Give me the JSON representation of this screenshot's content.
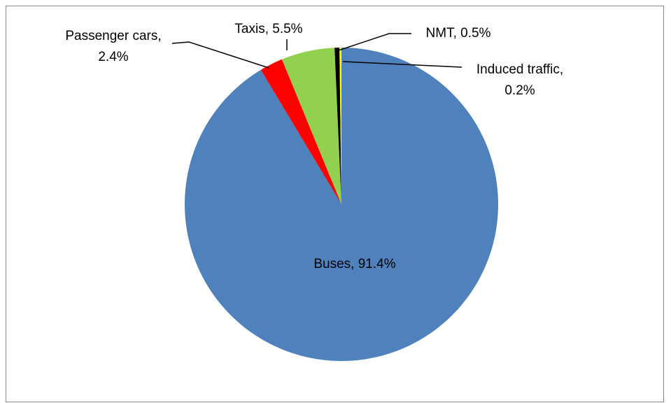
{
  "chart_data": {
    "type": "pie",
    "values": [
      91.4,
      2.4,
      5.5,
      0.5,
      0.2
    ],
    "value_labels": [
      "Buses, 91.4%",
      "Passenger cars, 2.4%",
      "Taxis, 5.5%",
      "NMT, 0.5%",
      "Induced traffic, 0.2%"
    ],
    "colors": [
      "#4f81bd",
      "#ff0000",
      "#92d050",
      "#000000",
      "#ffff00"
    ]
  }
}
